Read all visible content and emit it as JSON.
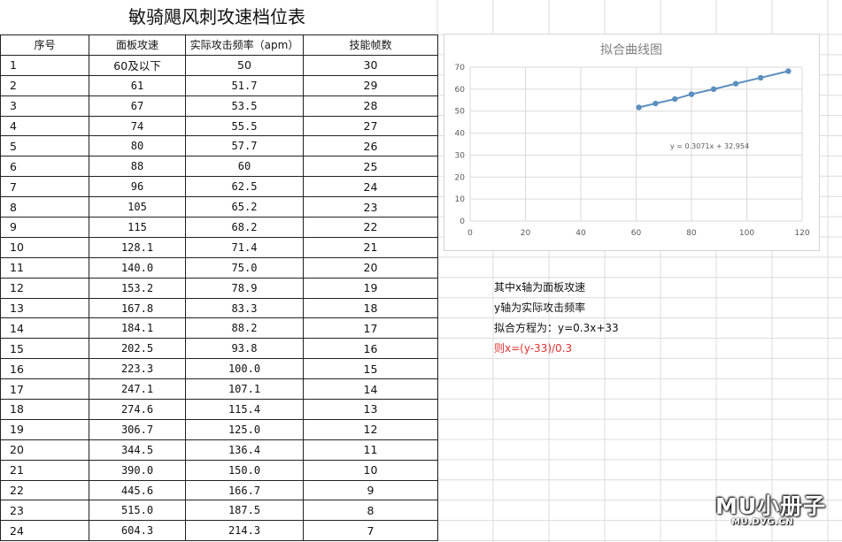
{
  "sheet": {
    "title": "敏骑飓风刺攻速档位表",
    "columns": [
      "序号",
      "面板攻速",
      "实际攻击频率（apm）",
      "技能帧数"
    ],
    "rows": [
      [
        "1",
        "60及以下",
        "50",
        "30"
      ],
      [
        "2",
        "61",
        "51.7",
        "29"
      ],
      [
        "3",
        "67",
        "53.5",
        "28"
      ],
      [
        "4",
        "74",
        "55.5",
        "27"
      ],
      [
        "5",
        "80",
        "57.7",
        "26"
      ],
      [
        "6",
        "88",
        "60",
        "25"
      ],
      [
        "7",
        "96",
        "62.5",
        "24"
      ],
      [
        "8",
        "105",
        "65.2",
        "23"
      ],
      [
        "9",
        "115",
        "68.2",
        "22"
      ],
      [
        "10",
        "128.1",
        "71.4",
        "21"
      ],
      [
        "11",
        "140.0",
        "75.0",
        "20"
      ],
      [
        "12",
        "153.2",
        "78.9",
        "19"
      ],
      [
        "13",
        "167.8",
        "83.3",
        "18"
      ],
      [
        "14",
        "184.1",
        "88.2",
        "17"
      ],
      [
        "15",
        "202.5",
        "93.8",
        "16"
      ],
      [
        "16",
        "223.3",
        "100.0",
        "15"
      ],
      [
        "17",
        "247.1",
        "107.1",
        "14"
      ],
      [
        "18",
        "274.6",
        "115.4",
        "13"
      ],
      [
        "19",
        "306.7",
        "125.0",
        "12"
      ],
      [
        "20",
        "344.5",
        "136.4",
        "11"
      ],
      [
        "21",
        "390.0",
        "150.0",
        "10"
      ],
      [
        "22",
        "445.6",
        "166.7",
        "9"
      ],
      [
        "23",
        "515.0",
        "187.5",
        "8"
      ],
      [
        "24",
        "604.3",
        "214.3",
        "7"
      ]
    ]
  },
  "notes": {
    "line1": "其中x轴为面板攻速",
    "line2": "y轴为实际攻击频率",
    "line3": "拟合方程为：y=0.3x+33",
    "line4": "则x=(y-33)/0.3",
    "line4_color": "#e03030"
  },
  "watermark": {
    "text": "MU小册子",
    "url": "MU.DVG.CN"
  },
  "chart_data": {
    "type": "line",
    "title": "拟合曲线图",
    "x": [
      61,
      67,
      74,
      80,
      88,
      96,
      105,
      115
    ],
    "series": [
      {
        "values": [
          51.7,
          53.5,
          55.5,
          57.7,
          60,
          62.5,
          65.2,
          68.2
        ],
        "color": "#5b8fbf"
      }
    ],
    "xlim": [
      0,
      120
    ],
    "ylim": [
      0,
      70
    ],
    "xticks": [
      0,
      20,
      40,
      60,
      80,
      100,
      120
    ],
    "yticks": [
      0,
      10,
      20,
      30,
      40,
      50,
      60,
      70
    ],
    "annotation": "y = 0.3071x + 32.954",
    "grid": true
  }
}
